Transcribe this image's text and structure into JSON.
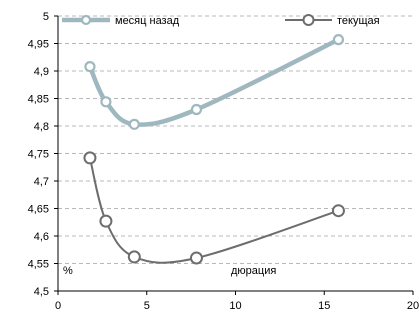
{
  "chart_data": {
    "type": "line",
    "x_unit_label": "дюрация",
    "y_unit_label": "%",
    "xlim": [
      0,
      20
    ],
    "ylim": [
      4.5,
      5
    ],
    "x_ticks": [
      "0",
      "5",
      "10",
      "15",
      "20"
    ],
    "y_ticks": [
      "4,5",
      "4,55",
      "4,6",
      "4,65",
      "4,7",
      "4,75",
      "4,8",
      "4,85",
      "4,9",
      "4,95",
      "5"
    ],
    "grid": "horizontal dashed",
    "legend_position": "top",
    "series": [
      {
        "name": "месяц назад",
        "color": "#9fb8c0",
        "x": [
          1.8,
          2.7,
          4.3,
          7.8,
          15.8
        ],
        "y": [
          4.908,
          4.844,
          4.803,
          4.83,
          4.957
        ]
      },
      {
        "name": "текущая",
        "color": "#6d6d6d",
        "x": [
          1.8,
          2.7,
          4.3,
          7.8,
          15.8
        ],
        "y": [
          4.742,
          4.627,
          4.562,
          4.56,
          4.646
        ]
      }
    ]
  }
}
